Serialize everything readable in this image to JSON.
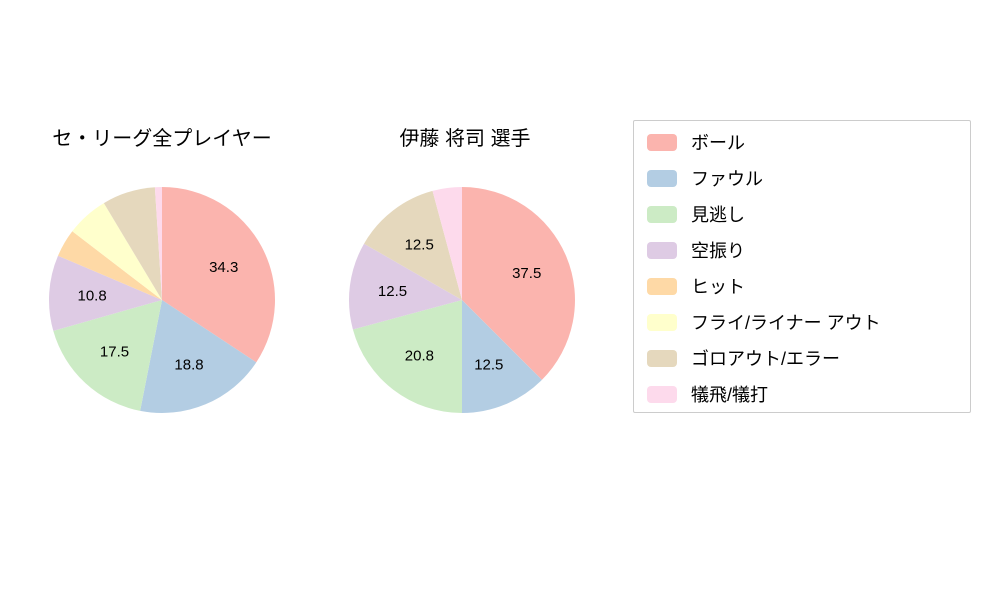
{
  "chart_data": [
    {
      "type": "pie",
      "title": "セ・リーグ全プレイヤー",
      "labels": [
        "ボール",
        "ファウル",
        "見逃し",
        "空振り",
        "ヒット",
        "フライ/ライナー アウト",
        "ゴロアウト/エラー",
        "犠飛/犠打"
      ],
      "values": [
        34.3,
        18.8,
        17.5,
        10.8,
        4.0,
        6.0,
        7.6,
        1.0
      ],
      "value_labels": [
        "34.3",
        "18.8",
        "17.5",
        "10.8",
        "",
        "",
        "",
        ""
      ],
      "start_angle": "top",
      "direction": "clockwise"
    },
    {
      "type": "pie",
      "title": "伊藤 将司 選手",
      "labels": [
        "ボール",
        "ファウル",
        "見逃し",
        "空振り",
        "ヒット",
        "フライ/ライナー アウト",
        "ゴロアウト/エラー",
        "犠飛/犠打"
      ],
      "values": [
        37.5,
        12.5,
        20.8,
        12.5,
        0,
        0,
        12.5,
        4.2
      ],
      "value_labels": [
        "37.5",
        "12.5",
        "20.8",
        "12.5",
        "",
        "",
        "12.5",
        ""
      ],
      "start_angle": "top",
      "direction": "clockwise"
    }
  ],
  "legend": {
    "position": "right",
    "items": [
      {
        "label": "ボール",
        "color": "#fbb4ae"
      },
      {
        "label": "ファウル",
        "color": "#b3cde3"
      },
      {
        "label": "見逃し",
        "color": "#ccebc5"
      },
      {
        "label": "空振り",
        "color": "#decbe4"
      },
      {
        "label": "ヒット",
        "color": "#fed9a6"
      },
      {
        "label": "フライ/ライナー アウト",
        "color": "#ffffcc"
      },
      {
        "label": "ゴロアウト/エラー",
        "color": "#e5d8bd"
      },
      {
        "label": "犠飛/犠打",
        "color": "#fddaec"
      }
    ]
  }
}
